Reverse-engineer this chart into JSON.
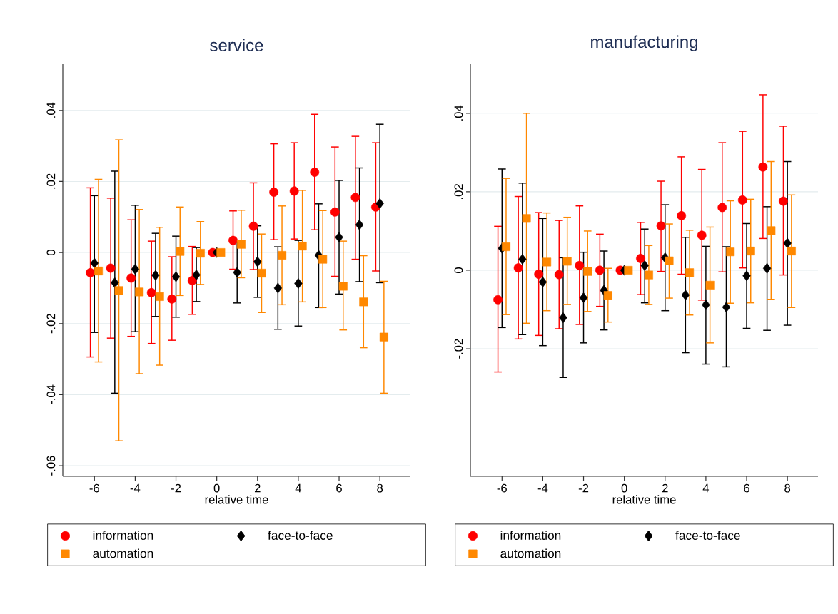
{
  "chart_data": [
    {
      "type": "scatter",
      "title": "service",
      "xlabel": "relative time",
      "legend": "bottom",
      "grid": "y",
      "xlim": [
        -7.55,
        9.5
      ],
      "xticks": [
        -6,
        -4,
        -2,
        0,
        2,
        4,
        6,
        8
      ],
      "ylim": [
        -0.063,
        0.053
      ],
      "yticks": [
        {
          "value": -0.06,
          "label": "-.06"
        },
        {
          "value": -0.04,
          "label": "-.04"
        },
        {
          "value": -0.02,
          "label": "-.02"
        },
        {
          "value": 0,
          "label": "0"
        },
        {
          "value": 0.02,
          "label": ".02"
        },
        {
          "value": 0.04,
          "label": ".04"
        }
      ],
      "series": [
        {
          "name": "information",
          "color": "#ff0000",
          "marker": "circle",
          "x": [
            -6.2,
            -5.2,
            -4.2,
            -3.2,
            -2.2,
            -1.2,
            -0.2,
            0.8,
            1.8,
            2.8,
            3.8,
            4.8,
            5.8,
            6.8,
            7.8
          ],
          "values": [
            -0.0057,
            -0.0044,
            -0.0072,
            -0.0113,
            -0.0131,
            -0.0079,
            0,
            0.0034,
            0.0074,
            0.017,
            0.0173,
            0.0226,
            0.0114,
            0.0155,
            0.0128
          ],
          "errors": [
            [
              -0.0294,
              0.0182
            ],
            [
              -0.0241,
              0.0153
            ],
            [
              -0.0236,
              0.0092
            ],
            [
              -0.0256,
              0.0032
            ],
            [
              -0.0247,
              -0.0012
            ],
            [
              -0.0174,
              0.0017
            ],
            null,
            [
              -0.0047,
              0.0117
            ],
            [
              -0.0048,
              0.0196
            ],
            [
              0.0036,
              0.0306
            ],
            [
              0.0038,
              0.0309
            ],
            [
              0.0064,
              0.0389
            ],
            [
              -0.0067,
              0.0297
            ],
            [
              -0.0019,
              0.0327
            ],
            [
              -0.0052,
              0.0309
            ]
          ]
        },
        {
          "name": "face-to-face",
          "color": "#000000",
          "marker": "diamond",
          "x": [
            -6,
            -5,
            -4,
            -3,
            -2,
            -1,
            0,
            1,
            2,
            3,
            4,
            5,
            6,
            7,
            8
          ],
          "values": [
            -0.003,
            -0.0085,
            -0.0047,
            -0.0064,
            -0.0068,
            -0.0063,
            0,
            -0.0056,
            -0.0026,
            -0.01,
            -0.0087,
            -0.0008,
            0.0043,
            0.0078,
            0.0138
          ],
          "errors": [
            [
              -0.0225,
              0.016
            ],
            [
              -0.0396,
              0.0229
            ],
            [
              -0.0223,
              0.0133
            ],
            [
              -0.018,
              0.0054
            ],
            [
              -0.0182,
              0.0046
            ],
            [
              -0.0138,
              0.0014
            ],
            null,
            [
              -0.0142,
              0.003
            ],
            [
              -0.0126,
              0.0075
            ],
            [
              -0.0216,
              0.0016
            ],
            [
              -0.0207,
              0.0034
            ],
            [
              -0.0155,
              0.0137
            ],
            [
              -0.0117,
              0.0203
            ],
            [
              -0.0082,
              0.0238
            ],
            [
              -0.0085,
              0.0361
            ]
          ]
        },
        {
          "name": "automation",
          "color": "#ff8800",
          "marker": "square",
          "x": [
            -5.8,
            -4.8,
            -3.8,
            -2.8,
            -1.8,
            -0.8,
            0.2,
            1.2,
            2.2,
            3.2,
            4.2,
            5.2,
            6.2,
            7.2,
            8.2
          ],
          "values": [
            -0.0052,
            -0.0107,
            -0.0111,
            -0.0124,
            0.0003,
            -0.0002,
            0,
            0.0023,
            -0.0058,
            -0.0008,
            0.0018,
            -0.0019,
            -0.0095,
            -0.0139,
            -0.0238
          ],
          "errors": [
            [
              -0.0308,
              0.0206
            ],
            [
              -0.053,
              0.0317
            ],
            [
              -0.0341,
              0.0121
            ],
            [
              -0.0317,
              0.0071
            ],
            [
              -0.0121,
              0.0128
            ],
            [
              -0.009,
              0.0087
            ],
            null,
            [
              -0.0071,
              0.0119
            ],
            [
              -0.0169,
              0.0052
            ],
            [
              -0.0147,
              0.0131
            ],
            [
              -0.0139,
              0.0175
            ],
            [
              -0.0155,
              0.0118
            ],
            [
              -0.0218,
              0.0032
            ],
            [
              -0.0268,
              -0.0009
            ],
            [
              -0.0396,
              -0.0081
            ]
          ]
        }
      ]
    },
    {
      "type": "scatter",
      "title": "manufacturing",
      "xlabel": "relative time",
      "legend": "bottom",
      "grid": "y",
      "xlim": [
        -7.55,
        9.5
      ],
      "xticks": [
        -6,
        -4,
        -2,
        0,
        2,
        4,
        6,
        8
      ],
      "ylim": [
        -0.0525,
        0.0525
      ],
      "yticks": [
        {
          "value": -0.02,
          "label": "-.02"
        },
        {
          "value": 0,
          "label": "0"
        },
        {
          "value": 0.02,
          "label": ".02"
        },
        {
          "value": 0.04,
          "label": ".04"
        }
      ],
      "series": [
        {
          "name": "information",
          "color": "#ff0000",
          "marker": "circle",
          "x": [
            -6.2,
            -5.2,
            -4.2,
            -3.2,
            -2.2,
            -1.2,
            -0.2,
            0.8,
            1.8,
            2.8,
            3.8,
            4.8,
            5.8,
            6.8,
            7.8
          ],
          "values": [
            -0.0075,
            0.0006,
            -0.001,
            -0.0011,
            0.0012,
            0,
            0,
            0.003,
            0.0113,
            0.0139,
            0.0089,
            0.016,
            0.0179,
            0.0263,
            0.0176
          ],
          "errors": [
            [
              -0.0259,
              0.0112
            ],
            [
              -0.0175,
              0.0188
            ],
            [
              -0.0166,
              0.0147
            ],
            [
              -0.0149,
              0.0127
            ],
            [
              -0.0138,
              0.0164
            ],
            [
              -0.0092,
              0.0092
            ],
            null,
            [
              -0.0062,
              0.0122
            ],
            [
              -0.0003,
              0.0227
            ],
            [
              -0.001,
              0.0289
            ],
            [
              -0.0076,
              0.0257
            ],
            [
              -0.0004,
              0.0325
            ],
            [
              0.0006,
              0.0354
            ],
            [
              0.0081,
              0.0447
            ],
            [
              -0.0012,
              0.0367
            ]
          ]
        },
        {
          "name": "face-to-face",
          "color": "#000000",
          "marker": "diamond",
          "x": [
            -6,
            -5,
            -4,
            -3,
            -2,
            -1,
            0,
            1,
            2,
            3,
            4,
            5,
            6,
            7,
            8
          ],
          "values": [
            0.0056,
            0.0028,
            -0.003,
            -0.0121,
            -0.007,
            -0.0051,
            0,
            0.0012,
            0.0032,
            -0.0063,
            -0.0088,
            -0.0094,
            -0.0014,
            0.0005,
            0.0069
          ],
          "errors": [
            [
              -0.0146,
              0.0258
            ],
            [
              -0.0164,
              0.0222
            ],
            [
              -0.0192,
              0.0132
            ],
            [
              -0.0273,
              0.0032
            ],
            [
              -0.0185,
              0.0046
            ],
            [
              -0.0152,
              0.0049
            ],
            null,
            [
              -0.0083,
              0.0105
            ],
            [
              -0.0103,
              0.0167
            ],
            [
              -0.021,
              0.0084
            ],
            [
              -0.0239,
              0.0061
            ],
            [
              -0.0246,
              0.006
            ],
            [
              -0.0148,
              0.0119
            ],
            [
              -0.0153,
              0.0162
            ],
            [
              -0.014,
              0.0277
            ]
          ]
        },
        {
          "name": "automation",
          "color": "#ff8800",
          "marker": "square",
          "x": [
            -5.8,
            -4.8,
            -3.8,
            -2.8,
            -1.8,
            -0.8,
            0.2,
            1.2,
            2.2,
            3.2,
            4.2,
            5.2,
            6.2,
            7.2,
            8.2
          ],
          "values": [
            0.006,
            0.0132,
            0.0021,
            0.0023,
            -0.0003,
            -0.0064,
            0,
            -0.0012,
            0.0024,
            -0.0006,
            -0.0038,
            0.0047,
            0.0049,
            0.0101,
            0.0049
          ],
          "errors": [
            [
              -0.0113,
              0.0234
            ],
            [
              -0.0135,
              0.04
            ],
            [
              -0.0103,
              0.0146
            ],
            [
              -0.0087,
              0.0135
            ],
            [
              -0.0105,
              0.01
            ],
            [
              -0.0132,
              0.0005
            ],
            null,
            [
              -0.0087,
              0.0063
            ],
            [
              -0.0071,
              0.0118
            ],
            [
              -0.0114,
              0.0102
            ],
            [
              -0.0185,
              0.011
            ],
            [
              -0.0084,
              0.0177
            ],
            [
              -0.0083,
              0.0181
            ],
            [
              -0.0074,
              0.0277
            ],
            [
              -0.0095,
              0.0192
            ]
          ]
        }
      ]
    }
  ]
}
